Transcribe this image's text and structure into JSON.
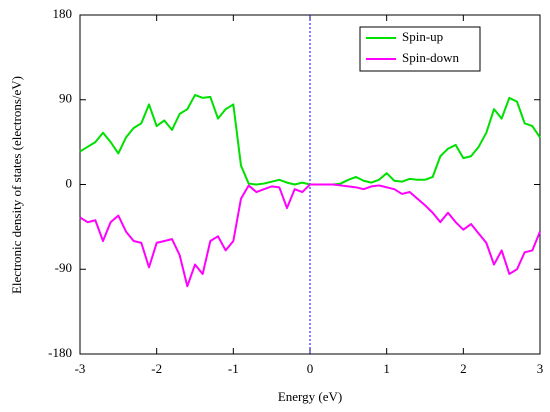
{
  "chart_data": {
    "type": "line",
    "x_label": "Energy (eV)",
    "y_label": "Electronic density of states (electrons/eV)",
    "x": [
      -3.0,
      -2.9,
      -2.8,
      -2.7,
      -2.6,
      -2.5,
      -2.4,
      -2.3,
      -2.2,
      -2.1,
      -2.0,
      -1.9,
      -1.8,
      -1.7,
      -1.6,
      -1.5,
      -1.4,
      -1.3,
      -1.2,
      -1.1,
      -1.0,
      -0.9,
      -0.8,
      -0.7,
      -0.6,
      -0.5,
      -0.4,
      -0.3,
      -0.2,
      -0.1,
      0.0,
      0.1,
      0.2,
      0.3,
      0.4,
      0.5,
      0.6,
      0.7,
      0.8,
      0.9,
      1.0,
      1.1,
      1.2,
      1.3,
      1.4,
      1.5,
      1.6,
      1.7,
      1.8,
      1.9,
      2.0,
      2.1,
      2.2,
      2.3,
      2.4,
      2.5,
      2.6,
      2.7,
      2.8,
      2.9,
      3.0
    ],
    "series": [
      {
        "name": "Spin-up",
        "color": "#00e000",
        "values": [
          35,
          40,
          45,
          55,
          45,
          33,
          50,
          60,
          65,
          85,
          62,
          68,
          58,
          75,
          80,
          95,
          92,
          93,
          70,
          80,
          85,
          20,
          1,
          0,
          1,
          3,
          5,
          2,
          0,
          2,
          0,
          0,
          0,
          0,
          1,
          5,
          8,
          4,
          2,
          5,
          12,
          4,
          3,
          6,
          5,
          5,
          8,
          30,
          38,
          42,
          28,
          30,
          40,
          55,
          80,
          70,
          92,
          88,
          65,
          62,
          50
        ]
      },
      {
        "name": "Spin-down",
        "color": "#ff00ff",
        "values": [
          -35,
          -40,
          -38,
          -60,
          -40,
          -33,
          -50,
          -60,
          -62,
          -88,
          -62,
          -60,
          -58,
          -75,
          -108,
          -85,
          -95,
          -60,
          -55,
          -70,
          -60,
          -15,
          -1,
          -8,
          -5,
          -2,
          -3,
          -25,
          -5,
          -8,
          0,
          0,
          0,
          0,
          -1,
          -2,
          -3,
          -5,
          -2,
          -1,
          -3,
          -5,
          -10,
          -8,
          -15,
          -22,
          -30,
          -40,
          -30,
          -40,
          -48,
          -42,
          -52,
          -62,
          -85,
          -70,
          -95,
          -90,
          -72,
          -70,
          -50
        ]
      }
    ],
    "xlim": [
      -3,
      3
    ],
    "xticks": [
      -3,
      -2,
      -1,
      0,
      1,
      2,
      3
    ],
    "ylim": [
      -180,
      180
    ],
    "yticks": [
      -180,
      -90,
      0,
      90,
      180
    ],
    "vline": 0,
    "vline_color": "#0000ff",
    "legend": "upper right"
  }
}
